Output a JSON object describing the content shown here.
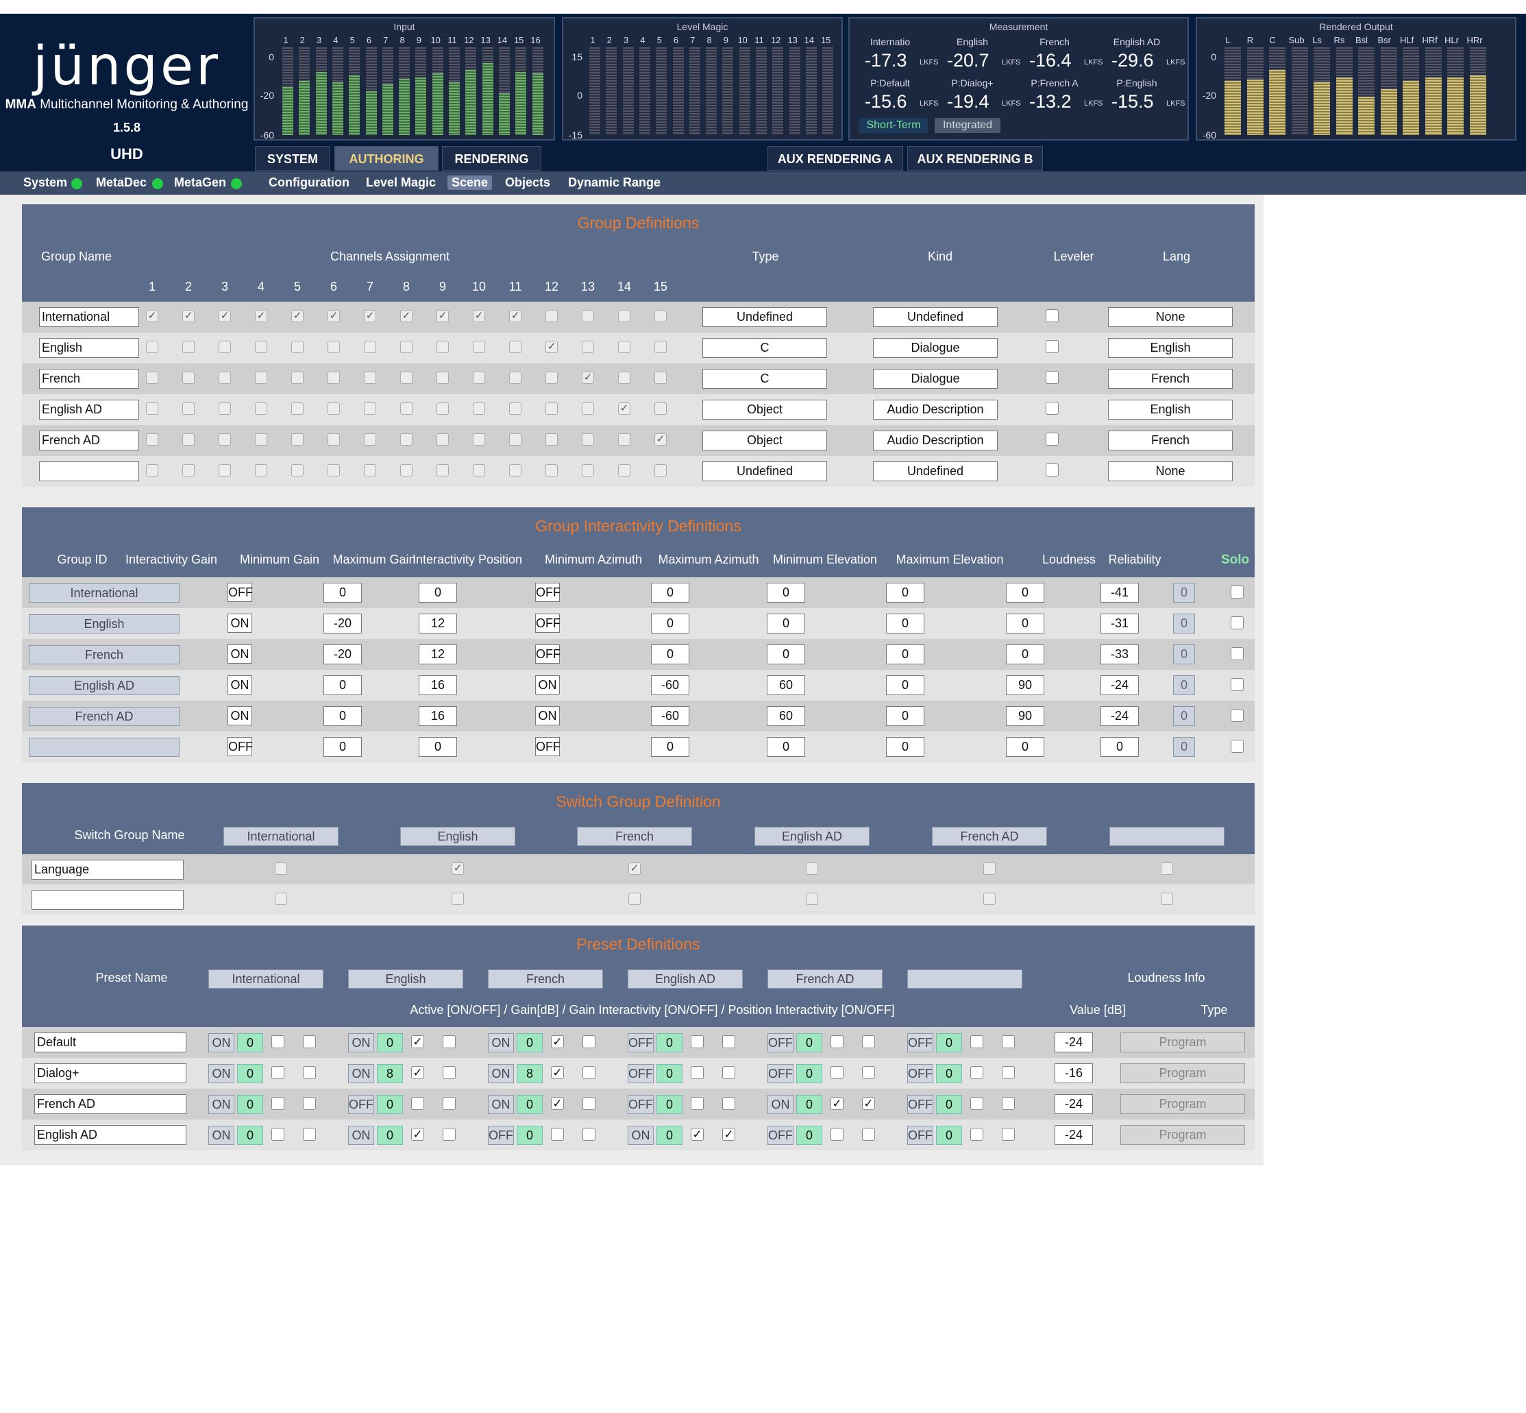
{
  "brand": {
    "logo": "jünger",
    "model": "MMA",
    "subtitle": "Multichannel Monitoring & Authoring",
    "version": "1.5.8",
    "format": "UHD"
  },
  "meters": {
    "input": {
      "title": "Input",
      "channels": [
        "1",
        "2",
        "3",
        "4",
        "5",
        "6",
        "7",
        "8",
        "9",
        "10",
        "11",
        "12",
        "13",
        "14",
        "15",
        "16"
      ],
      "scale": [
        "0",
        "-20",
        "-60"
      ],
      "levels": [
        0.55,
        0.62,
        0.72,
        0.6,
        0.68,
        0.5,
        0.58,
        0.64,
        0.66,
        0.7,
        0.6,
        0.74,
        0.82,
        0.48,
        0.72,
        0.7
      ]
    },
    "level_magic": {
      "title": "Level Magic",
      "channels": [
        "1",
        "2",
        "3",
        "4",
        "5",
        "6",
        "7",
        "8",
        "9",
        "10",
        "11",
        "12",
        "13",
        "14",
        "15"
      ],
      "scale": [
        "15",
        "0",
        "-15"
      ]
    },
    "measurement": {
      "title": "Measurement",
      "row1": [
        {
          "label": "Internatio",
          "value": "-17.3",
          "unit": "LKFS"
        },
        {
          "label": "English",
          "value": "-20.7",
          "unit": "LKFS"
        },
        {
          "label": "French",
          "value": "-16.4",
          "unit": "LKFS"
        },
        {
          "label": "English AD",
          "value": "-29.6",
          "unit": "LKFS"
        }
      ],
      "row2": [
        {
          "label": "P:Default",
          "value": "-15.6",
          "unit": "LKFS"
        },
        {
          "label": "P:Dialog+",
          "value": "-19.4",
          "unit": "LKFS"
        },
        {
          "label": "P:French A",
          "value": "-13.2",
          "unit": "LKFS"
        },
        {
          "label": "P:English",
          "value": "-15.5",
          "unit": "LKFS"
        }
      ],
      "short_term": "Short-Term",
      "integrated": "Integrated"
    },
    "rendered_output": {
      "title": "Rendered Output",
      "channels": [
        "L",
        "R",
        "C",
        "Sub",
        "Ls",
        "Rs",
        "Bsl",
        "Bsr",
        "HLf",
        "HRf",
        "HLr",
        "HRr"
      ],
      "scale": [
        "0",
        "-20",
        "-60"
      ],
      "levels": [
        0.62,
        0.63,
        0.74,
        0.0,
        0.6,
        0.66,
        0.44,
        0.52,
        0.62,
        0.66,
        0.66,
        0.68
      ]
    }
  },
  "tabs": {
    "system": "SYSTEM",
    "authoring": "AUTHORING",
    "rendering": "RENDERING",
    "aux_a": "AUX RENDERING A",
    "aux_b": "AUX RENDERING B"
  },
  "subnav": {
    "system": "System",
    "metadec": "MetaDec",
    "metagen": "MetaGen",
    "configuration": "Configuration",
    "level_magic": "Level Magic",
    "scene": "Scene",
    "objects": "Objects",
    "dynamic_range": "Dynamic Range"
  },
  "group_definitions": {
    "title": "Group Definitions",
    "headers": {
      "name": "Group Name",
      "channels": "Channels Assignment",
      "type": "Type",
      "kind": "Kind",
      "leveler": "Leveler",
      "lang": "Lang"
    },
    "channel_numbers": [
      "1",
      "2",
      "3",
      "4",
      "5",
      "6",
      "7",
      "8",
      "9",
      "10",
      "11",
      "12",
      "13",
      "14",
      "15"
    ],
    "rows": [
      {
        "name": "International",
        "channels": [
          1,
          1,
          1,
          1,
          1,
          1,
          1,
          1,
          1,
          1,
          1,
          0,
          0,
          0,
          0
        ],
        "type": "Undefined",
        "kind": "Undefined",
        "lang": "None"
      },
      {
        "name": "English",
        "channels": [
          0,
          0,
          0,
          0,
          0,
          0,
          0,
          0,
          0,
          0,
          0,
          1,
          0,
          0,
          0
        ],
        "type": "C",
        "kind": "Dialogue",
        "lang": "English"
      },
      {
        "name": "French",
        "channels": [
          0,
          0,
          0,
          0,
          0,
          0,
          0,
          0,
          0,
          0,
          0,
          0,
          1,
          0,
          0
        ],
        "type": "C",
        "kind": "Dialogue",
        "lang": "French"
      },
      {
        "name": "English AD",
        "channels": [
          0,
          0,
          0,
          0,
          0,
          0,
          0,
          0,
          0,
          0,
          0,
          0,
          0,
          1,
          0
        ],
        "type": "Object",
        "kind": "Audio Description",
        "lang": "English"
      },
      {
        "name": "French AD",
        "channels": [
          0,
          0,
          0,
          0,
          0,
          0,
          0,
          0,
          0,
          0,
          0,
          0,
          0,
          0,
          1
        ],
        "type": "Object",
        "kind": "Audio Description",
        "lang": "French"
      },
      {
        "name": "",
        "channels": [
          0,
          0,
          0,
          0,
          0,
          0,
          0,
          0,
          0,
          0,
          0,
          0,
          0,
          0,
          0
        ],
        "type": "Undefined",
        "kind": "Undefined",
        "lang": "None"
      }
    ]
  },
  "group_interactivity": {
    "title": "Group Interactivity Definitions",
    "headers": [
      "Group ID",
      "Interactivity Gain",
      "Minimum Gain",
      "Maximum Gain",
      "Interactivity Position",
      "Minimum Azimuth",
      "Maximum Azimuth",
      "Minimum Elevation",
      "Maximum Elevation",
      "Loudness",
      "Reliability"
    ],
    "solo": "Solo",
    "rows": [
      {
        "id": "International",
        "gain": "OFF",
        "min_gain": "0",
        "max_gain": "0",
        "pos": "OFF",
        "min_az": "0",
        "max_az": "0",
        "min_el": "0",
        "max_el": "0",
        "loudness": "-41",
        "reliability": "0"
      },
      {
        "id": "English",
        "gain": "ON",
        "min_gain": "-20",
        "max_gain": "12",
        "pos": "OFF",
        "min_az": "0",
        "max_az": "0",
        "min_el": "0",
        "max_el": "0",
        "loudness": "-31",
        "reliability": "0"
      },
      {
        "id": "French",
        "gain": "ON",
        "min_gain": "-20",
        "max_gain": "12",
        "pos": "OFF",
        "min_az": "0",
        "max_az": "0",
        "min_el": "0",
        "max_el": "0",
        "loudness": "-33",
        "reliability": "0"
      },
      {
        "id": "English AD",
        "gain": "ON",
        "min_gain": "0",
        "max_gain": "16",
        "pos": "ON",
        "min_az": "-60",
        "max_az": "60",
        "min_el": "0",
        "max_el": "90",
        "loudness": "-24",
        "reliability": "0"
      },
      {
        "id": "French AD",
        "gain": "ON",
        "min_gain": "0",
        "max_gain": "16",
        "pos": "ON",
        "min_az": "-60",
        "max_az": "60",
        "min_el": "0",
        "max_el": "90",
        "loudness": "-24",
        "reliability": "0"
      },
      {
        "id": "",
        "gain": "OFF",
        "min_gain": "0",
        "max_gain": "0",
        "pos": "OFF",
        "min_az": "0",
        "max_az": "0",
        "min_el": "0",
        "max_el": "0",
        "loudness": "0",
        "reliability": "0"
      }
    ]
  },
  "switch_group": {
    "title": "Switch Group Definition",
    "name_header": "Switch Group Name",
    "groups": [
      "International",
      "English",
      "French",
      "English AD",
      "French AD",
      ""
    ],
    "rows": [
      {
        "name": "Language",
        "checks": [
          0,
          1,
          1,
          0,
          0,
          0
        ]
      },
      {
        "name": "",
        "checks": [
          0,
          0,
          0,
          0,
          0,
          0
        ]
      }
    ]
  },
  "presets": {
    "title": "Preset Definitions",
    "name_header": "Preset Name",
    "groups": [
      "International",
      "English",
      "French",
      "English AD",
      "French AD",
      ""
    ],
    "loudness_info": "Loudness Info",
    "subheader": "Active [ON/OFF] / Gain[dB] / Gain Interactivity [ON/OFF] / Position Interactivity [ON/OFF]",
    "value_header": "Value [dB]",
    "type_header": "Type",
    "rows": [
      {
        "name": "Default",
        "cells": [
          [
            "ON",
            "0",
            0,
            0
          ],
          [
            "ON",
            "0",
            1,
            0
          ],
          [
            "ON",
            "0",
            1,
            0
          ],
          [
            "OFF",
            "0",
            0,
            0
          ],
          [
            "OFF",
            "0",
            0,
            0
          ],
          [
            "OFF",
            "0",
            0,
            0
          ]
        ],
        "value": "-24",
        "type": "Program"
      },
      {
        "name": "Dialog+",
        "cells": [
          [
            "ON",
            "0",
            0,
            0
          ],
          [
            "ON",
            "8",
            1,
            0
          ],
          [
            "ON",
            "8",
            1,
            0
          ],
          [
            "OFF",
            "0",
            0,
            0
          ],
          [
            "OFF",
            "0",
            0,
            0
          ],
          [
            "OFF",
            "0",
            0,
            0
          ]
        ],
        "value": "-16",
        "type": "Program"
      },
      {
        "name": "French AD",
        "cells": [
          [
            "ON",
            "0",
            0,
            0
          ],
          [
            "OFF",
            "0",
            0,
            0
          ],
          [
            "ON",
            "0",
            1,
            0
          ],
          [
            "OFF",
            "0",
            0,
            0
          ],
          [
            "ON",
            "0",
            1,
            1
          ],
          [
            "OFF",
            "0",
            0,
            0
          ]
        ],
        "value": "-24",
        "type": "Program"
      },
      {
        "name": "English AD",
        "cells": [
          [
            "ON",
            "0",
            0,
            0
          ],
          [
            "ON",
            "0",
            1,
            0
          ],
          [
            "OFF",
            "0",
            0,
            0
          ],
          [
            "ON",
            "0",
            1,
            1
          ],
          [
            "OFF",
            "0",
            0,
            0
          ],
          [
            "OFF",
            "0",
            0,
            0
          ]
        ],
        "value": "-24",
        "type": "Program"
      }
    ]
  },
  "colors": {
    "accent_orange": "#f07a2a",
    "led_green": "#22cc44",
    "gain_green": "#9fe8bf",
    "panel_blue": "#5b6d8b",
    "solo_green": "#8ee6a8"
  }
}
